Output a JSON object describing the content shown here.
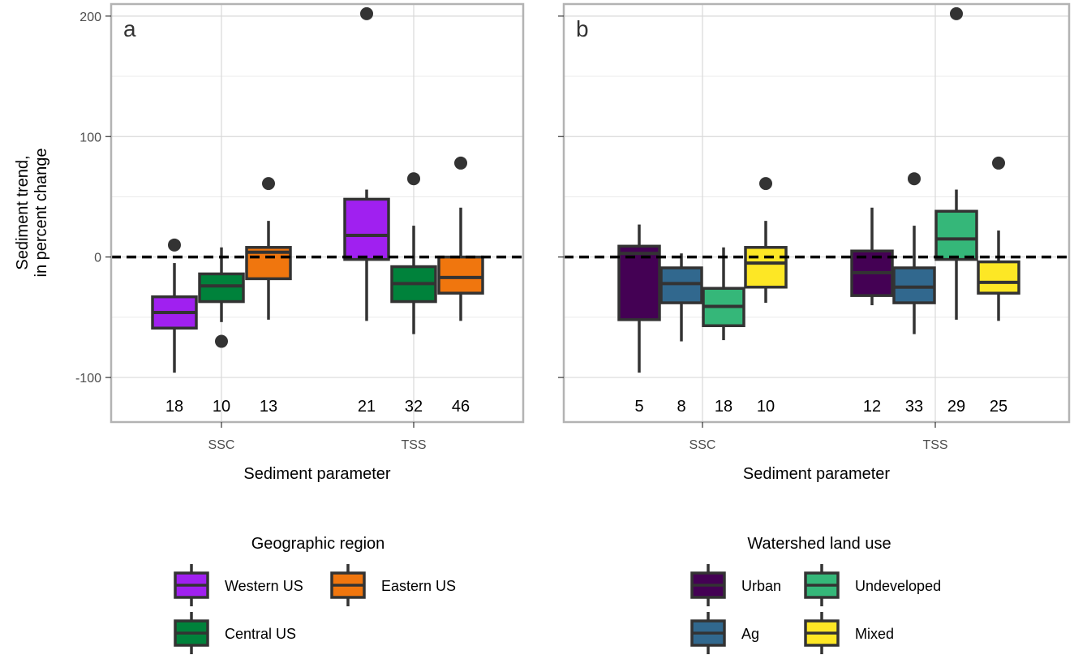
{
  "chart_data": [
    {
      "type": "boxplot",
      "panel_label": "a",
      "xlabel": "Sediment parameter",
      "ylabel_lines": [
        "Sediment trend,",
        "in percent change"
      ],
      "yticks": [
        -100,
        0,
        100,
        200
      ],
      "ylim": [
        -137,
        210
      ],
      "reference_line": 0,
      "categories": [
        "SSC",
        "TSS"
      ],
      "groups": [
        {
          "category": "SSC",
          "series": "Western US",
          "color": "#a020f0",
          "q1": -59,
          "median": -46,
          "q3": -33,
          "whisker_low": -96,
          "whisker_high": -5,
          "outliers": [
            10
          ],
          "n": "18"
        },
        {
          "category": "SSC",
          "series": "Central US",
          "color": "#00823b",
          "q1": -37,
          "median": -24,
          "q3": -14,
          "whisker_low": -54,
          "whisker_high": 8,
          "outliers": [
            -70
          ],
          "n": "10"
        },
        {
          "category": "SSC",
          "series": "Eastern US",
          "color": "#f0760e",
          "q1": -18,
          "median": 4,
          "q3": 8,
          "whisker_low": -52,
          "whisker_high": 30,
          "outliers": [
            61
          ],
          "n": "13"
        },
        {
          "category": "TSS",
          "series": "Western US",
          "color": "#a020f0",
          "q1": -2,
          "median": 18,
          "q3": 48,
          "whisker_low": -53,
          "whisker_high": 56,
          "outliers": [
            202
          ],
          "n": "21"
        },
        {
          "category": "TSS",
          "series": "Central US",
          "color": "#00823b",
          "q1": -37,
          "median": -22,
          "q3": -8,
          "whisker_low": -64,
          "whisker_high": 26,
          "outliers": [
            65
          ],
          "n": "32"
        },
        {
          "category": "TSS",
          "series": "Eastern US",
          "color": "#f0760e",
          "q1": -30,
          "median": -17,
          "q3": 0,
          "whisker_low": -53,
          "whisker_high": 41,
          "outliers": [
            78
          ],
          "n": "46"
        }
      ],
      "legend": {
        "title": "Geographic region",
        "placement": "bottom",
        "entries": [
          {
            "label": "Western US",
            "color": "#a020f0"
          },
          {
            "label": "Eastern US",
            "color": "#f0760e"
          },
          {
            "label": "Central US",
            "color": "#00823b"
          }
        ]
      }
    },
    {
      "type": "boxplot",
      "panel_label": "b",
      "xlabel": "Sediment parameter",
      "yticks": [
        -100,
        0,
        100,
        200
      ],
      "ylim": [
        -137,
        210
      ],
      "reference_line": 0,
      "categories": [
        "SSC",
        "TSS"
      ],
      "groups": [
        {
          "category": "SSC",
          "series": "Urban",
          "color": "#440154",
          "q1": -52,
          "median": 3,
          "q3": 9,
          "whisker_low": -96,
          "whisker_high": 27,
          "outliers": [],
          "n": "5"
        },
        {
          "category": "SSC",
          "series": "Ag",
          "color": "#31688e",
          "q1": -38,
          "median": -22,
          "q3": -9,
          "whisker_low": -70,
          "whisker_high": 3,
          "outliers": [],
          "n": "8"
        },
        {
          "category": "SSC",
          "series": "Undeveloped",
          "color": "#35b779",
          "q1": -57,
          "median": -41,
          "q3": -26,
          "whisker_low": -69,
          "whisker_high": 8,
          "outliers": [],
          "n": "18"
        },
        {
          "category": "SSC",
          "series": "Mixed",
          "color": "#fde725",
          "q1": -25,
          "median": -5,
          "q3": 8,
          "whisker_low": -38,
          "whisker_high": 30,
          "outliers": [
            61
          ],
          "n": "10"
        },
        {
          "category": "TSS",
          "series": "Urban",
          "color": "#440154",
          "q1": -32,
          "median": -13,
          "q3": 5,
          "whisker_low": -40,
          "whisker_high": 41,
          "outliers": [],
          "n": "12"
        },
        {
          "category": "TSS",
          "series": "Ag",
          "color": "#31688e",
          "q1": -38,
          "median": -25,
          "q3": -9,
          "whisker_low": -64,
          "whisker_high": 26,
          "outliers": [
            65
          ],
          "n": "33"
        },
        {
          "category": "TSS",
          "series": "Undeveloped",
          "color": "#35b779",
          "q1": -2,
          "median": 15,
          "q3": 38,
          "whisker_low": -52,
          "whisker_high": 56,
          "outliers": [
            202
          ],
          "n": "29"
        },
        {
          "category": "TSS",
          "series": "Mixed",
          "color": "#fde725",
          "q1": -30,
          "median": -21,
          "q3": -4,
          "whisker_low": -53,
          "whisker_high": 22,
          "outliers": [
            78
          ],
          "n": "25"
        }
      ],
      "legend": {
        "title": "Watershed land use",
        "placement": "bottom",
        "entries": [
          {
            "label": "Urban",
            "color": "#440154"
          },
          {
            "label": "Undeveloped",
            "color": "#35b779"
          },
          {
            "label": "Ag",
            "color": "#31688e"
          },
          {
            "label": "Mixed",
            "color": "#fde725"
          }
        ]
      }
    }
  ]
}
